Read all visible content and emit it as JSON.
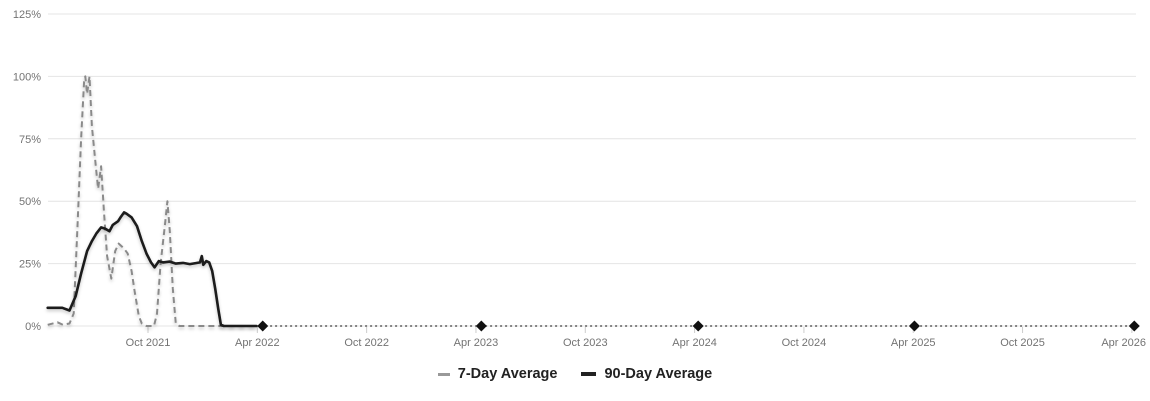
{
  "chart_data": {
    "type": "line",
    "title": "",
    "y_axis": {
      "range": [
        0,
        125
      ],
      "unit": "%",
      "ticks": [
        {
          "label": "0%",
          "value": 0
        },
        {
          "label": "25%",
          "value": 25
        },
        {
          "label": "50%",
          "value": 50
        },
        {
          "label": "75%",
          "value": 75
        },
        {
          "label": "100%",
          "value": 100
        },
        {
          "label": "125%",
          "value": 125
        }
      ]
    },
    "x_axis": {
      "range": [
        "2021-04-15",
        "2026-04-06"
      ],
      "ticks": [
        {
          "label": "Oct 2021",
          "date": "2021-10-01"
        },
        {
          "label": "Apr 2022",
          "date": "2022-04-01"
        },
        {
          "label": "Oct 2022",
          "date": "2022-10-01"
        },
        {
          "label": "Apr 2023",
          "date": "2023-04-01"
        },
        {
          "label": "Oct 2023",
          "date": "2023-10-01"
        },
        {
          "label": "Apr 2024",
          "date": "2024-04-01"
        },
        {
          "label": "Oct 2024",
          "date": "2024-10-01"
        },
        {
          "label": "Apr 2025",
          "date": "2025-04-01"
        },
        {
          "label": "Oct 2025",
          "date": "2025-10-01"
        },
        {
          "label": "Apr 2026",
          "date": "2026-04-01"
        }
      ]
    },
    "grid": {
      "color": "#e4e4e4",
      "horizontal": true,
      "vertical": false
    },
    "axis_label_color": "#737373",
    "tick_mark_color": "#cccccc",
    "series": [
      {
        "name": "7-Day Average",
        "style": "dashed",
        "color": "#8a8a8a",
        "points": [
          [
            "2021-04-16",
            0.5
          ],
          [
            "2021-05-02",
            1.5
          ],
          [
            "2021-05-11",
            0.5
          ],
          [
            "2021-05-22",
            1
          ],
          [
            "2021-05-29",
            5
          ],
          [
            "2021-06-05",
            40
          ],
          [
            "2021-06-11",
            75
          ],
          [
            "2021-06-16",
            98
          ],
          [
            "2021-06-18",
            100
          ],
          [
            "2021-06-21",
            93
          ],
          [
            "2021-06-25",
            100
          ],
          [
            "2021-06-29",
            80
          ],
          [
            "2021-07-06",
            62
          ],
          [
            "2021-07-09",
            55
          ],
          [
            "2021-07-14",
            64
          ],
          [
            "2021-07-19",
            45
          ],
          [
            "2021-07-24",
            28
          ],
          [
            "2021-07-31",
            19
          ],
          [
            "2021-08-07",
            30
          ],
          [
            "2021-08-13",
            33
          ],
          [
            "2021-08-22",
            31
          ],
          [
            "2021-08-28",
            29
          ],
          [
            "2021-09-04",
            22
          ],
          [
            "2021-09-09",
            14
          ],
          [
            "2021-09-16",
            4
          ],
          [
            "2021-09-21",
            1
          ],
          [
            "2021-09-29",
            0
          ],
          [
            "2021-10-11",
            0
          ],
          [
            "2021-10-16",
            5
          ],
          [
            "2021-10-22",
            25
          ],
          [
            "2021-10-29",
            40
          ],
          [
            "2021-11-03",
            50
          ],
          [
            "2021-11-07",
            38
          ],
          [
            "2021-11-12",
            15
          ],
          [
            "2021-11-17",
            1
          ],
          [
            "2021-11-23",
            0
          ],
          [
            "2022-03-28",
            0
          ]
        ]
      },
      {
        "name": "90-Day Average",
        "style": "solid",
        "color": "#1a1a1a",
        "points": [
          [
            "2021-04-16",
            7.3
          ],
          [
            "2021-05-10",
            7.3
          ],
          [
            "2021-05-22",
            6.2
          ],
          [
            "2021-06-02",
            12
          ],
          [
            "2021-06-11",
            21
          ],
          [
            "2021-06-21",
            30
          ],
          [
            "2021-06-29",
            34
          ],
          [
            "2021-07-06",
            37
          ],
          [
            "2021-07-14",
            39.5
          ],
          [
            "2021-07-21",
            39
          ],
          [
            "2021-07-28",
            38
          ],
          [
            "2021-08-03",
            40.5
          ],
          [
            "2021-08-12",
            42
          ],
          [
            "2021-08-16",
            43.5
          ],
          [
            "2021-08-22",
            45.5
          ],
          [
            "2021-08-26",
            45
          ],
          [
            "2021-09-04",
            43.5
          ],
          [
            "2021-09-13",
            40
          ],
          [
            "2021-09-21",
            34
          ],
          [
            "2021-09-29",
            29
          ],
          [
            "2021-10-06",
            25.5
          ],
          [
            "2021-10-12",
            23.5
          ],
          [
            "2021-10-19",
            26
          ],
          [
            "2021-10-26",
            25.5
          ],
          [
            "2021-11-07",
            25.8
          ],
          [
            "2021-11-17",
            25
          ],
          [
            "2021-11-29",
            25.3
          ],
          [
            "2021-12-10",
            24.8
          ],
          [
            "2021-12-20",
            25.2
          ],
          [
            "2021-12-27",
            25.5
          ],
          [
            "2021-12-30",
            28
          ],
          [
            "2022-01-02",
            24.5
          ],
          [
            "2022-01-07",
            26
          ],
          [
            "2022-01-12",
            25.5
          ],
          [
            "2022-01-17",
            22
          ],
          [
            "2022-01-22",
            15
          ],
          [
            "2022-01-27",
            7
          ],
          [
            "2022-02-01",
            0.5
          ],
          [
            "2022-02-06",
            0
          ],
          [
            "2022-03-30",
            0
          ]
        ]
      }
    ],
    "markers": {
      "shape": "diamond",
      "color": "#111111",
      "y": 0,
      "dates": [
        "2022-04-10",
        "2023-04-10",
        "2024-04-07",
        "2025-04-03",
        "2026-04-05"
      ]
    },
    "zero_flatline": {
      "style": "fine-dashed",
      "color": "#3a3a3a",
      "start": "2022-04-14",
      "end": "2026-04-05",
      "value": 0
    },
    "legend": {
      "position": "bottom-center"
    }
  }
}
